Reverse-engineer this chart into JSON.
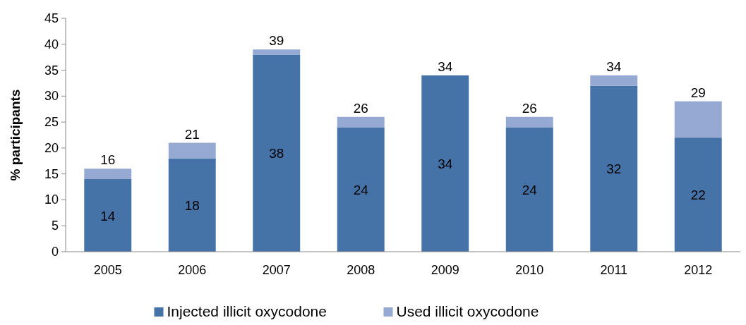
{
  "chart_data": {
    "type": "bar",
    "stacked": true,
    "ylabel": "% participants",
    "categories": [
      "2005",
      "2006",
      "2007",
      "2008",
      "2009",
      "2010",
      "2011",
      "2012"
    ],
    "series": [
      {
        "name": "Injected illicit oxycodone",
        "color": "#4572a7",
        "values": [
          14,
          18,
          38,
          24,
          34,
          24,
          32,
          22
        ],
        "value_labels": [
          "14",
          "18",
          "38",
          "24",
          "34",
          "24",
          "32",
          "22"
        ]
      },
      {
        "name": "Used illicit oxycodone",
        "color": "#95a9d3",
        "values": [
          2,
          3,
          1,
          2,
          0,
          2,
          2,
          7
        ]
      }
    ],
    "totals": [
      "16",
      "21",
      "39",
      "26",
      "34",
      "26",
      "34",
      "29"
    ],
    "ylim": [
      0,
      45
    ],
    "yticks": [
      0,
      5,
      10,
      15,
      20,
      25,
      30,
      35,
      40,
      45
    ],
    "grid": false,
    "legend": "bottom"
  }
}
